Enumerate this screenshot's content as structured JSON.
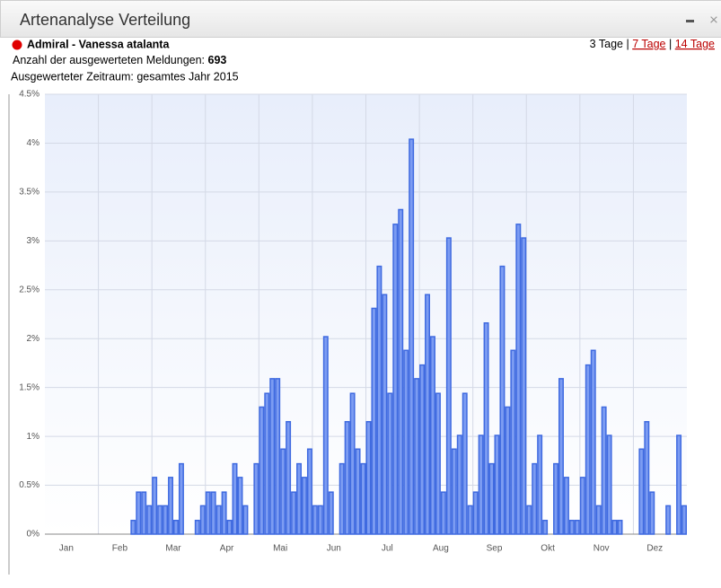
{
  "header": {
    "title": "Artenanalyse Verteilung"
  },
  "info": {
    "species": "Admiral - Vanessa atalanta",
    "count_label": "Anzahl der ausgewerteten Meldungen:",
    "count": "693",
    "period": "Ausgewerteter Zeitraum: gesamtes Jahr 2015",
    "ranges": [
      "3 Tage",
      "7 Tage",
      "14 Tage"
    ],
    "separator": "|"
  },
  "chart_data": {
    "type": "bar",
    "color": "#7c9cf2",
    "edge_color": "#3f6ae0",
    "grid": true,
    "month_labels": [
      "Jan",
      "Feb",
      "Mar",
      "Apr",
      "Mai",
      "Jun",
      "Jul",
      "Aug",
      "Sep",
      "Okt",
      "Nov",
      "Dez"
    ],
    "values": [
      0,
      0,
      0,
      0,
      0,
      0,
      0,
      0,
      0,
      0,
      0,
      0,
      0,
      0,
      0,
      0,
      0.14,
      0.43,
      0.43,
      0.29,
      0.58,
      0.29,
      0.29,
      0.58,
      0.14,
      0.72,
      0,
      0,
      0.14,
      0.29,
      0.43,
      0.43,
      0.29,
      0.43,
      0.14,
      0.72,
      0.58,
      0.29,
      0,
      0.72,
      1.3,
      1.44,
      1.59,
      1.59,
      0.87,
      1.15,
      0.43,
      0.72,
      0.58,
      0.87,
      0.29,
      0.29,
      2.02,
      0.43,
      0,
      0.72,
      1.15,
      1.44,
      0.87,
      0.72,
      1.15,
      2.31,
      2.74,
      2.45,
      1.44,
      3.17,
      3.32,
      1.88,
      4.04,
      1.59,
      1.73,
      2.45,
      2.02,
      1.44,
      0.43,
      3.03,
      0.87,
      1.01,
      1.44,
      0.29,
      0.43,
      1.01,
      2.16,
      0.72,
      1.01,
      2.74,
      1.3,
      1.88,
      3.17,
      3.03,
      0.29,
      0.72,
      1.01,
      0.14,
      0,
      0.72,
      1.59,
      0.58,
      0.14,
      0.14,
      0.58,
      1.73,
      1.88,
      0.29,
      1.3,
      1.01,
      0.14,
      0.14,
      0,
      0,
      0,
      0.87,
      1.15,
      0.43,
      0,
      0,
      0.29,
      0,
      1.01,
      0.29
    ],
    "ylim": [
      0,
      4.5
    ],
    "yticks": [
      {
        "value": 0,
        "label": "0%"
      },
      {
        "value": 0.5,
        "label": "0.5%"
      },
      {
        "value": 1,
        "label": "1%"
      },
      {
        "value": 1.5,
        "label": "1.5%"
      },
      {
        "value": 2,
        "label": "2%"
      },
      {
        "value": 2.5,
        "label": "2.5%"
      },
      {
        "value": 3,
        "label": "3%"
      },
      {
        "value": 3.5,
        "label": "3.5%"
      },
      {
        "value": 4,
        "label": "4%"
      },
      {
        "value": 4.5,
        "label": "4.5%"
      }
    ]
  }
}
